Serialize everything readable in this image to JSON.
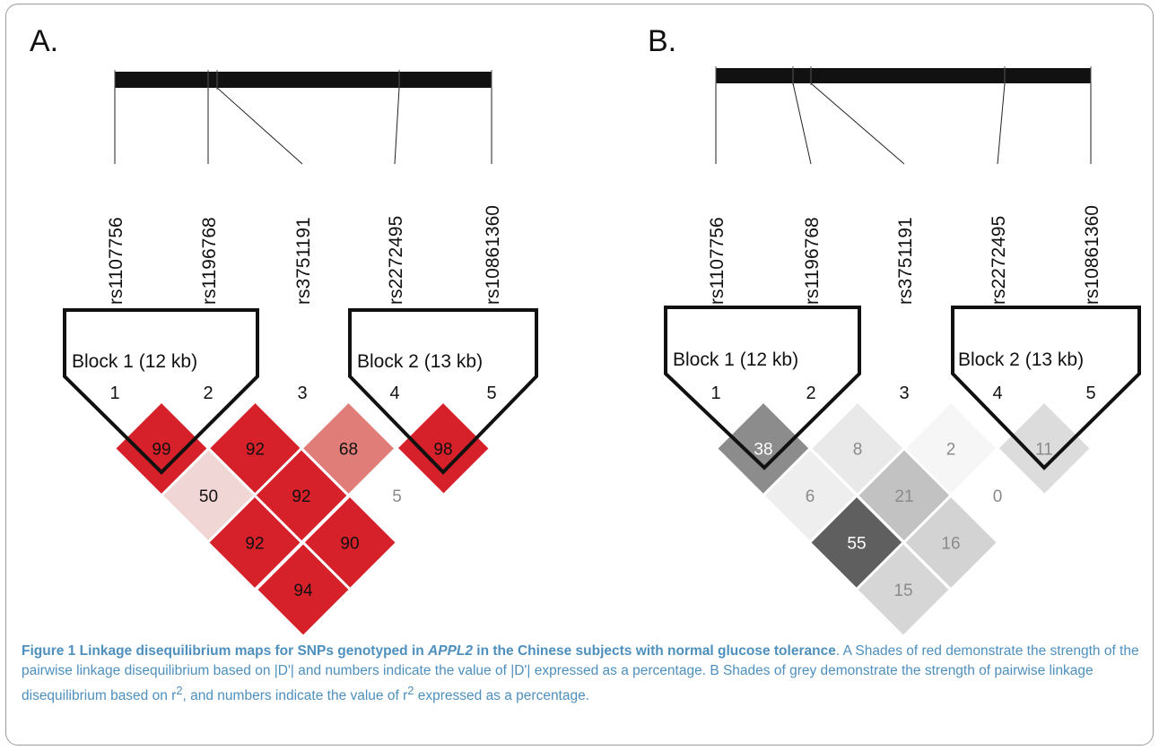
{
  "panelA": {
    "label": "A.",
    "snps": [
      "rs1107756",
      "rs1196768",
      "rs3751191",
      "rs2272495",
      "rs10861360"
    ],
    "indices": [
      "1",
      "2",
      "3",
      "4",
      "5"
    ],
    "blocks": [
      {
        "label": "Block 1 (12 kb)"
      },
      {
        "label": "Block 2 (13 kb)"
      }
    ],
    "cells": [
      {
        "i": 1,
        "j": 2,
        "value": "99",
        "color": "#d7212a"
      },
      {
        "i": 2,
        "j": 3,
        "value": "92",
        "color": "#d7212a"
      },
      {
        "i": 3,
        "j": 4,
        "value": "68",
        "color": "#e07d78"
      },
      {
        "i": 4,
        "j": 5,
        "value": "98",
        "color": "#d7212a"
      },
      {
        "i": 1,
        "j": 3,
        "value": "50",
        "color": "#f1d6d6"
      },
      {
        "i": 2,
        "j": 4,
        "value": "92",
        "color": "#d7212a"
      },
      {
        "i": 3,
        "j": 5,
        "value": "5",
        "color": "#ffffff"
      },
      {
        "i": 1,
        "j": 4,
        "value": "92",
        "color": "#d7212a"
      },
      {
        "i": 2,
        "j": 5,
        "value": "90",
        "color": "#d7212a"
      },
      {
        "i": 1,
        "j": 5,
        "value": "94",
        "color": "#d7212a"
      }
    ]
  },
  "panelB": {
    "label": "B.",
    "snps": [
      "rs1107756",
      "rs1196768",
      "rs3751191",
      "rs2272495",
      "rs10861360"
    ],
    "indices": [
      "1",
      "2",
      "3",
      "4",
      "5"
    ],
    "blocks": [
      {
        "label": "Block 1 (12 kb)"
      },
      {
        "label": "Block 2 (13 kb)"
      }
    ],
    "cells": [
      {
        "i": 1,
        "j": 2,
        "value": "38",
        "color": "#8c8c8c"
      },
      {
        "i": 2,
        "j": 3,
        "value": "8",
        "color": "#e9e9e9"
      },
      {
        "i": 3,
        "j": 4,
        "value": "2",
        "color": "#f6f6f6"
      },
      {
        "i": 4,
        "j": 5,
        "value": "11",
        "color": "#dcdcdc"
      },
      {
        "i": 1,
        "j": 3,
        "value": "6",
        "color": "#eeeeee"
      },
      {
        "i": 2,
        "j": 4,
        "value": "21",
        "color": "#c2c2c2"
      },
      {
        "i": 3,
        "j": 5,
        "value": "0",
        "color": "#ffffff"
      },
      {
        "i": 1,
        "j": 4,
        "value": "55",
        "color": "#5f5f5f"
      },
      {
        "i": 2,
        "j": 5,
        "value": "16",
        "color": "#d3d3d3"
      },
      {
        "i": 1,
        "j": 5,
        "value": "15",
        "color": "#d6d6d6"
      }
    ]
  },
  "caption": {
    "lead": "Figure 1 Linkage disequilibrium maps for SNPs genotyped in ",
    "gene": "APPL2",
    "lead_end": " in the Chinese subjects with normal glucose tolerance",
    "body_a": ". A Shades of red demonstrate the strength of the pairwise linkage disequilibrium based on |D'| and numbers indicate the value of |D'| expressed as a percentage. B Shades of grey demonstrate the strength of pairwise linkage disequilibrium based on r",
    "sup1": "2",
    "body_b": ", and numbers indicate the value of r",
    "sup2": "2",
    "body_c": " expressed as a percentage."
  }
}
